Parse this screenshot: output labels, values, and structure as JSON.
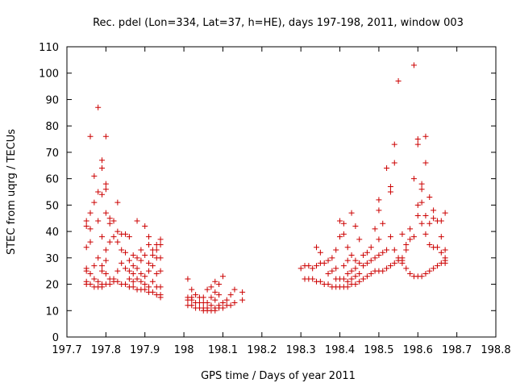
{
  "chart_data": {
    "type": "scatter",
    "title": "Rec. pdel (Lon=334, Lat=37, h=HE), days 197-198, 2011, window 003",
    "xlabel": "GPS time / Days of year 2011",
    "ylabel": "STEC from uqrg / TECUs",
    "xlim": [
      197.7,
      198.8
    ],
    "ylim": [
      0,
      110
    ],
    "x_ticks": [
      197.7,
      197.8,
      197.9,
      198,
      198.1,
      198.2,
      198.3,
      198.4,
      198.5,
      198.6,
      198.7,
      198.8
    ],
    "x_tick_labels": [
      "197.7",
      "197.8",
      "197.9",
      "198",
      "198.1",
      "198.2",
      "198.3",
      "198.4",
      "198.5",
      "198.6",
      "198.7",
      "198.8"
    ],
    "y_ticks": [
      0,
      10,
      20,
      30,
      40,
      50,
      60,
      70,
      80,
      90,
      100,
      110
    ],
    "y_tick_labels": [
      "0",
      "10",
      "20",
      "30",
      "40",
      "50",
      "60",
      "70",
      "80",
      "90",
      "100",
      "110"
    ],
    "grid": false,
    "marker": "+",
    "color": "#cc0000",
    "points": [
      [
        197.75,
        20
      ],
      [
        197.75,
        21
      ],
      [
        197.75,
        26
      ],
      [
        197.75,
        25
      ],
      [
        197.75,
        34
      ],
      [
        197.75,
        42
      ],
      [
        197.75,
        44
      ],
      [
        197.76,
        20
      ],
      [
        197.76,
        24
      ],
      [
        197.76,
        36
      ],
      [
        197.76,
        41
      ],
      [
        197.76,
        47
      ],
      [
        197.76,
        76
      ],
      [
        197.77,
        19
      ],
      [
        197.77,
        22
      ],
      [
        197.77,
        27
      ],
      [
        197.77,
        51
      ],
      [
        197.77,
        61
      ],
      [
        197.78,
        19
      ],
      [
        197.78,
        21
      ],
      [
        197.78,
        30
      ],
      [
        197.78,
        44
      ],
      [
        197.78,
        55
      ],
      [
        197.78,
        87
      ],
      [
        197.79,
        19
      ],
      [
        197.79,
        20
      ],
      [
        197.79,
        25
      ],
      [
        197.79,
        27
      ],
      [
        197.79,
        38
      ],
      [
        197.79,
        54
      ],
      [
        197.79,
        64
      ],
      [
        197.79,
        67
      ],
      [
        197.8,
        20
      ],
      [
        197.8,
        24
      ],
      [
        197.8,
        29
      ],
      [
        197.8,
        33
      ],
      [
        197.8,
        47
      ],
      [
        197.8,
        56
      ],
      [
        197.8,
        58
      ],
      [
        197.8,
        76
      ],
      [
        197.81,
        20
      ],
      [
        197.81,
        22
      ],
      [
        197.81,
        36
      ],
      [
        197.81,
        43
      ],
      [
        197.81,
        45
      ],
      [
        197.82,
        21
      ],
      [
        197.82,
        22
      ],
      [
        197.82,
        38
      ],
      [
        197.82,
        44
      ],
      [
        197.83,
        21
      ],
      [
        197.83,
        25
      ],
      [
        197.83,
        36
      ],
      [
        197.83,
        40
      ],
      [
        197.83,
        51
      ],
      [
        197.84,
        20
      ],
      [
        197.84,
        28
      ],
      [
        197.84,
        33
      ],
      [
        197.84,
        39
      ],
      [
        197.85,
        20
      ],
      [
        197.85,
        26
      ],
      [
        197.85,
        32
      ],
      [
        197.85,
        39
      ],
      [
        197.86,
        19
      ],
      [
        197.86,
        22
      ],
      [
        197.86,
        25
      ],
      [
        197.86,
        29
      ],
      [
        197.86,
        38
      ],
      [
        197.87,
        19
      ],
      [
        197.87,
        21
      ],
      [
        197.87,
        24
      ],
      [
        197.87,
        27
      ],
      [
        197.87,
        31
      ],
      [
        197.88,
        18
      ],
      [
        197.88,
        22
      ],
      [
        197.88,
        26
      ],
      [
        197.88,
        30
      ],
      [
        197.88,
        44
      ],
      [
        197.89,
        18
      ],
      [
        197.89,
        21
      ],
      [
        197.89,
        24
      ],
      [
        197.89,
        29
      ],
      [
        197.89,
        33
      ],
      [
        197.9,
        18
      ],
      [
        197.9,
        20
      ],
      [
        197.9,
        23
      ],
      [
        197.9,
        31
      ],
      [
        197.9,
        42
      ],
      [
        197.91,
        17
      ],
      [
        197.91,
        19
      ],
      [
        197.91,
        25
      ],
      [
        197.91,
        28
      ],
      [
        197.91,
        35
      ],
      [
        197.91,
        38
      ],
      [
        197.92,
        17
      ],
      [
        197.92,
        21
      ],
      [
        197.92,
        27
      ],
      [
        197.92,
        31
      ],
      [
        197.92,
        33
      ],
      [
        197.93,
        16
      ],
      [
        197.93,
        19
      ],
      [
        197.93,
        24
      ],
      [
        197.93,
        30
      ],
      [
        197.93,
        33
      ],
      [
        197.93,
        35
      ],
      [
        197.94,
        15
      ],
      [
        197.94,
        16
      ],
      [
        197.94,
        19
      ],
      [
        197.94,
        25
      ],
      [
        197.94,
        30
      ],
      [
        197.94,
        35
      ],
      [
        197.94,
        37
      ],
      [
        198.01,
        12
      ],
      [
        198.01,
        14
      ],
      [
        198.01,
        15
      ],
      [
        198.01,
        22
      ],
      [
        198.02,
        12
      ],
      [
        198.02,
        14
      ],
      [
        198.02,
        15
      ],
      [
        198.02,
        18
      ],
      [
        198.03,
        11
      ],
      [
        198.03,
        13
      ],
      [
        198.03,
        16
      ],
      [
        198.04,
        11
      ],
      [
        198.04,
        13
      ],
      [
        198.04,
        15
      ],
      [
        198.05,
        10
      ],
      [
        198.05,
        11
      ],
      [
        198.05,
        13
      ],
      [
        198.05,
        15
      ],
      [
        198.06,
        10
      ],
      [
        198.06,
        11
      ],
      [
        198.06,
        13
      ],
      [
        198.06,
        18
      ],
      [
        198.07,
        10
      ],
      [
        198.07,
        12
      ],
      [
        198.07,
        15
      ],
      [
        198.07,
        19
      ],
      [
        198.08,
        10
      ],
      [
        198.08,
        11
      ],
      [
        198.08,
        14
      ],
      [
        198.08,
        17
      ],
      [
        198.08,
        21
      ],
      [
        198.09,
        11
      ],
      [
        198.09,
        12
      ],
      [
        198.09,
        16
      ],
      [
        198.09,
        20
      ],
      [
        198.1,
        11
      ],
      [
        198.1,
        13
      ],
      [
        198.1,
        23
      ],
      [
        198.11,
        12
      ],
      [
        198.11,
        14
      ],
      [
        198.12,
        12
      ],
      [
        198.12,
        16
      ],
      [
        198.13,
        13
      ],
      [
        198.13,
        18
      ],
      [
        198.15,
        14
      ],
      [
        198.15,
        17
      ],
      [
        198.3,
        26
      ],
      [
        198.31,
        22
      ],
      [
        198.31,
        27
      ],
      [
        198.32,
        22
      ],
      [
        198.32,
        27
      ],
      [
        198.33,
        22
      ],
      [
        198.33,
        26
      ],
      [
        198.34,
        21
      ],
      [
        198.34,
        27
      ],
      [
        198.34,
        34
      ],
      [
        198.35,
        21
      ],
      [
        198.35,
        28
      ],
      [
        198.35,
        32
      ],
      [
        198.36,
        20
      ],
      [
        198.36,
        28
      ],
      [
        198.37,
        20
      ],
      [
        198.37,
        24
      ],
      [
        198.37,
        29
      ],
      [
        198.38,
        19
      ],
      [
        198.38,
        25
      ],
      [
        198.38,
        30
      ],
      [
        198.39,
        19
      ],
      [
        198.39,
        22
      ],
      [
        198.39,
        26
      ],
      [
        198.39,
        33
      ],
      [
        198.4,
        19
      ],
      [
        198.4,
        22
      ],
      [
        198.4,
        38
      ],
      [
        198.4,
        44
      ],
      [
        198.41,
        19
      ],
      [
        198.41,
        22
      ],
      [
        198.41,
        27
      ],
      [
        198.41,
        39
      ],
      [
        198.41,
        43
      ],
      [
        198.42,
        19
      ],
      [
        198.42,
        21
      ],
      [
        198.42,
        24
      ],
      [
        198.42,
        29
      ],
      [
        198.42,
        34
      ],
      [
        198.43,
        20
      ],
      [
        198.43,
        22
      ],
      [
        198.43,
        25
      ],
      [
        198.43,
        31
      ],
      [
        198.43,
        47
      ],
      [
        198.44,
        20
      ],
      [
        198.44,
        23
      ],
      [
        198.44,
        26
      ],
      [
        198.44,
        29
      ],
      [
        198.44,
        42
      ],
      [
        198.45,
        21
      ],
      [
        198.45,
        24
      ],
      [
        198.45,
        28
      ],
      [
        198.45,
        37
      ],
      [
        198.46,
        22
      ],
      [
        198.46,
        27
      ],
      [
        198.46,
        31
      ],
      [
        198.47,
        23
      ],
      [
        198.47,
        28
      ],
      [
        198.47,
        32
      ],
      [
        198.48,
        24
      ],
      [
        198.48,
        29
      ],
      [
        198.48,
        34
      ],
      [
        198.49,
        25
      ],
      [
        198.49,
        30
      ],
      [
        198.49,
        41
      ],
      [
        198.5,
        25
      ],
      [
        198.5,
        31
      ],
      [
        198.5,
        37
      ],
      [
        198.5,
        48
      ],
      [
        198.5,
        52
      ],
      [
        198.51,
        25
      ],
      [
        198.51,
        32
      ],
      [
        198.51,
        43
      ],
      [
        198.52,
        26
      ],
      [
        198.52,
        33
      ],
      [
        198.52,
        64
      ],
      [
        198.53,
        27
      ],
      [
        198.53,
        38
      ],
      [
        198.53,
        55
      ],
      [
        198.53,
        57
      ],
      [
        198.54,
        28
      ],
      [
        198.54,
        33
      ],
      [
        198.54,
        66
      ],
      [
        198.54,
        73
      ],
      [
        198.55,
        29
      ],
      [
        198.55,
        30
      ],
      [
        198.55,
        97
      ],
      [
        198.56,
        28
      ],
      [
        198.56,
        29
      ],
      [
        198.56,
        30
      ],
      [
        198.56,
        39
      ],
      [
        198.57,
        26
      ],
      [
        198.57,
        33
      ],
      [
        198.57,
        35
      ],
      [
        198.58,
        24
      ],
      [
        198.58,
        37
      ],
      [
        198.58,
        41
      ],
      [
        198.59,
        23
      ],
      [
        198.59,
        38
      ],
      [
        198.59,
        60
      ],
      [
        198.59,
        103
      ],
      [
        198.6,
        23
      ],
      [
        198.6,
        46
      ],
      [
        198.6,
        50
      ],
      [
        198.6,
        73
      ],
      [
        198.6,
        75
      ],
      [
        198.61,
        23
      ],
      [
        198.61,
        43
      ],
      [
        198.61,
        51
      ],
      [
        198.61,
        56
      ],
      [
        198.61,
        58
      ],
      [
        198.62,
        24
      ],
      [
        198.62,
        39
      ],
      [
        198.62,
        46
      ],
      [
        198.62,
        66
      ],
      [
        198.62,
        76
      ],
      [
        198.63,
        25
      ],
      [
        198.63,
        35
      ],
      [
        198.63,
        43
      ],
      [
        198.63,
        53
      ],
      [
        198.64,
        26
      ],
      [
        198.64,
        34
      ],
      [
        198.64,
        45
      ],
      [
        198.64,
        48
      ],
      [
        198.65,
        27
      ],
      [
        198.65,
        34
      ],
      [
        198.65,
        44
      ],
      [
        198.66,
        28
      ],
      [
        198.66,
        32
      ],
      [
        198.66,
        38
      ],
      [
        198.66,
        44
      ],
      [
        198.67,
        28
      ],
      [
        198.67,
        29
      ],
      [
        198.67,
        30
      ],
      [
        198.67,
        33
      ],
      [
        198.67,
        47
      ]
    ]
  }
}
